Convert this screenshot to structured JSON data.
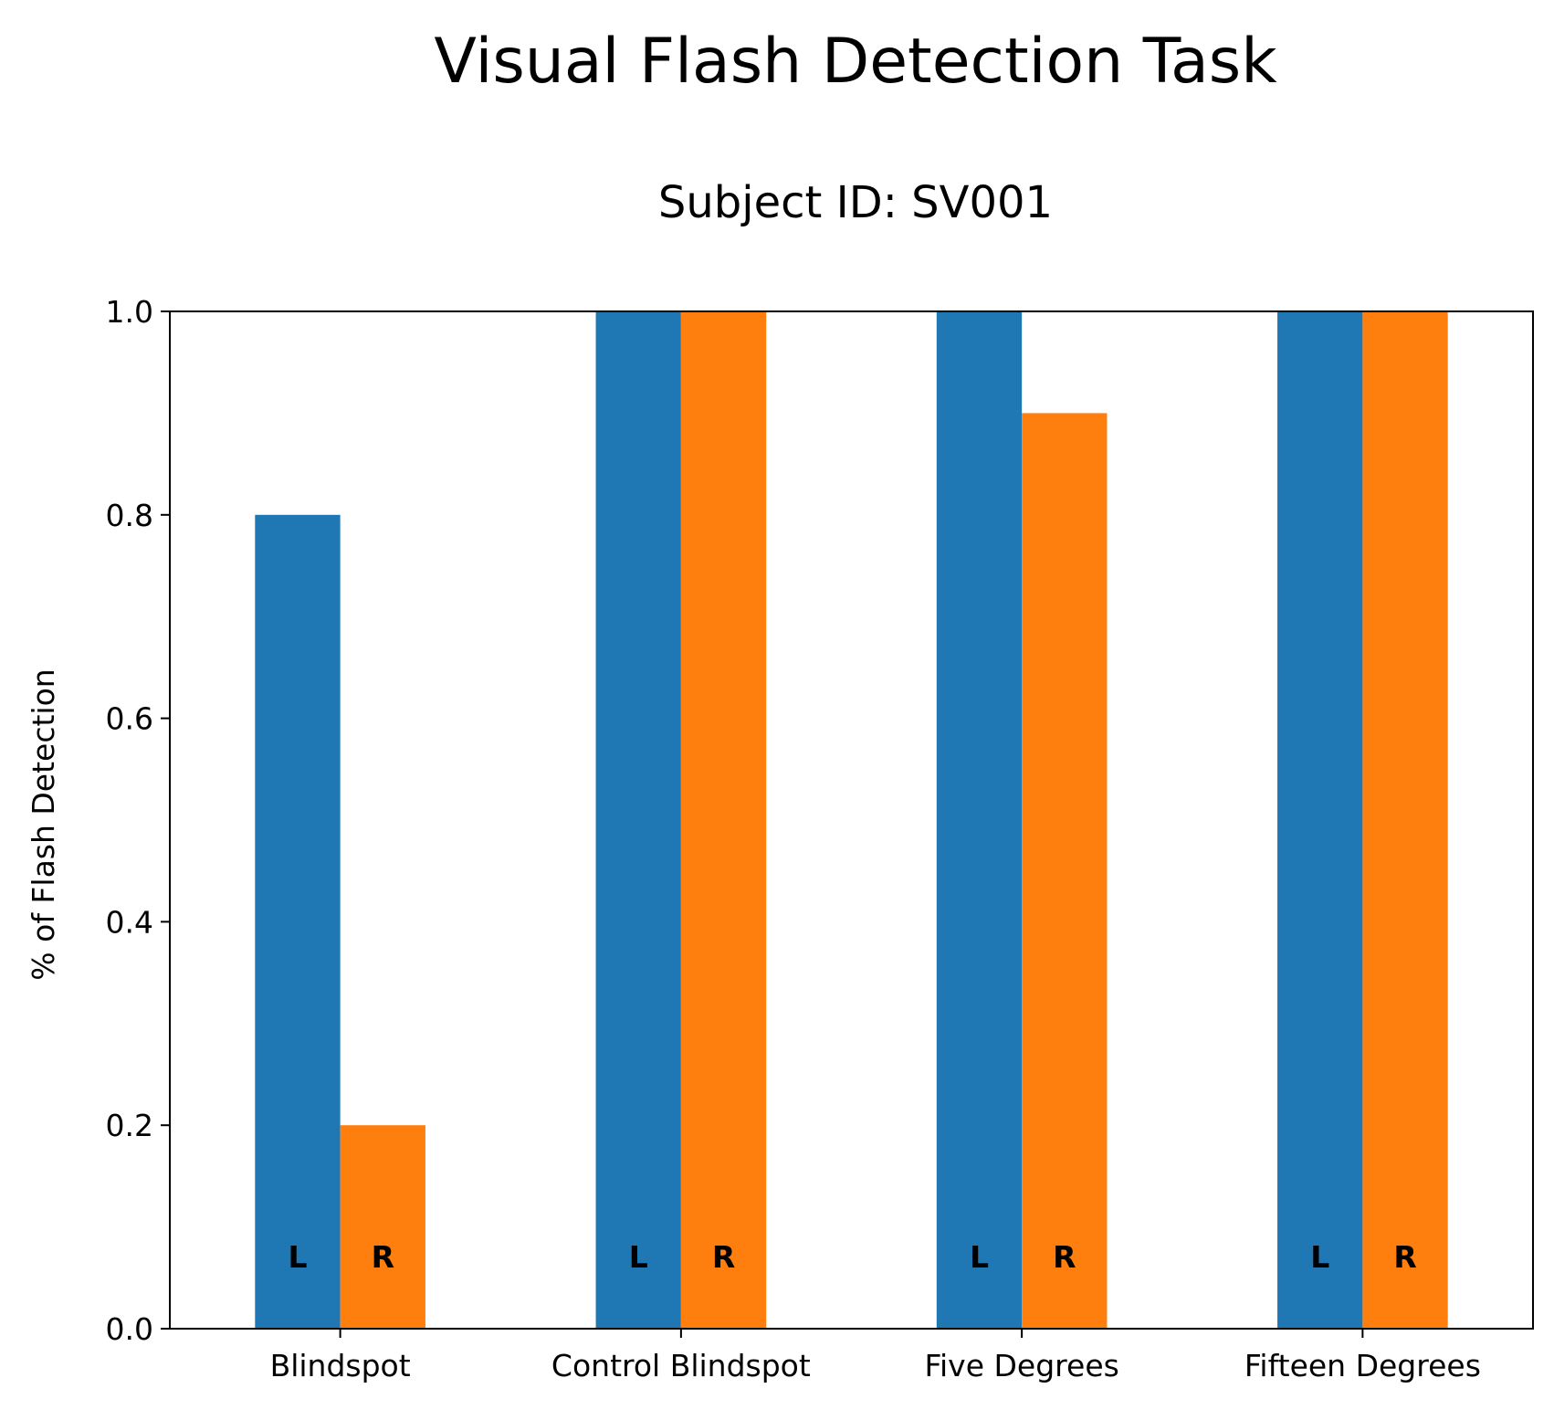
{
  "chart_data": {
    "type": "bar",
    "title": "Visual Flash Detection Task",
    "subtitle": "Subject ID: SV001",
    "xlabel": "",
    "ylabel": "% of Flash Detection",
    "categories": [
      "Blindspot",
      "Control Blindspot",
      "Five Degrees",
      "Fifteen Degrees"
    ],
    "series": [
      {
        "tag": "L",
        "color": "#1f77b4",
        "values": [
          0.8,
          1.0,
          1.0,
          1.0
        ]
      },
      {
        "tag": "R",
        "color": "#ff7f0e",
        "values": [
          0.2,
          1.0,
          0.9,
          1.0
        ]
      }
    ],
    "ylim": [
      0.0,
      1.0
    ],
    "yticks": [
      "0.0",
      "0.2",
      "0.4",
      "0.6",
      "0.8",
      "1.0"
    ],
    "ytick_values": [
      0.0,
      0.2,
      0.4,
      0.6,
      0.8,
      1.0
    ],
    "grid": false,
    "legend": "none"
  }
}
